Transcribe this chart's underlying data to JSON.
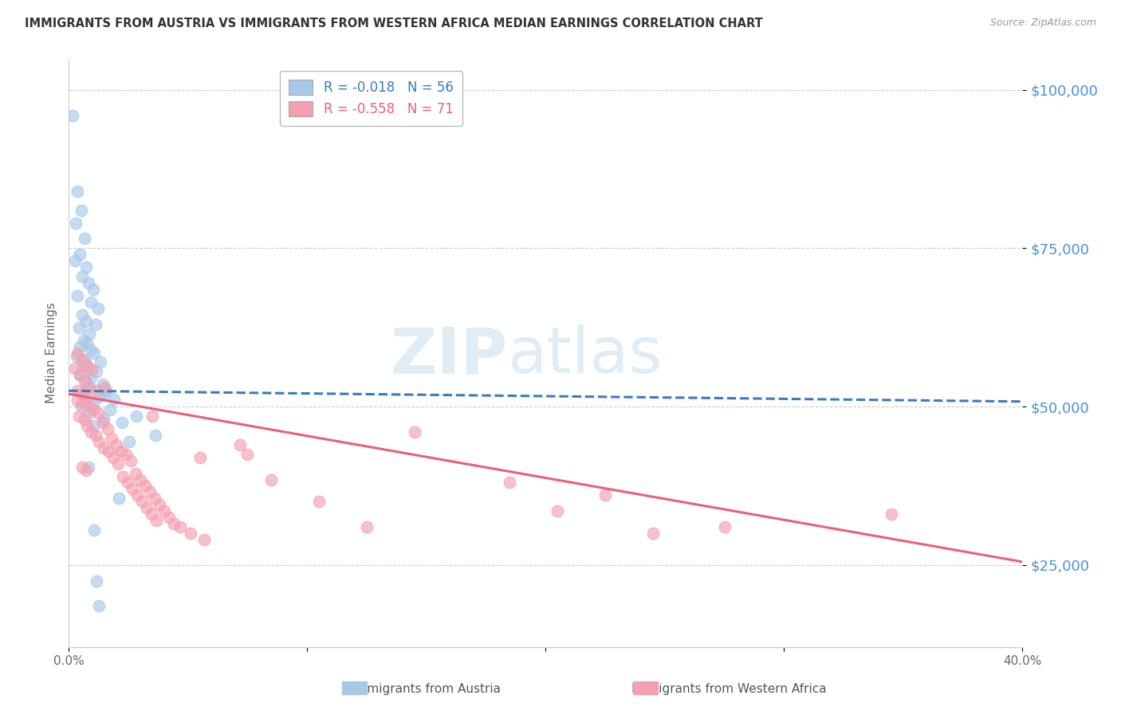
{
  "title": "IMMIGRANTS FROM AUSTRIA VS IMMIGRANTS FROM WESTERN AFRICA MEDIAN EARNINGS CORRELATION CHART",
  "source": "Source: ZipAtlas.com",
  "ylabel": "Median Earnings",
  "watermark_line1": "ZIP",
  "watermark_line2": "atlas",
  "series": [
    {
      "name": "Immigrants from Austria",
      "R": "-0.018",
      "N": 56,
      "color": "#a8c8e8",
      "line_color": "#3a7abf",
      "line_style": "--",
      "trendline_x": [
        0.0,
        40.0
      ],
      "trendline_y": [
        52500,
        50800
      ],
      "points": [
        [
          0.18,
          96000
        ],
        [
          0.38,
          84000
        ],
        [
          0.52,
          81000
        ],
        [
          0.31,
          79000
        ],
        [
          0.65,
          76500
        ],
        [
          0.45,
          74000
        ],
        [
          0.28,
          73000
        ],
        [
          0.72,
          72000
        ],
        [
          0.58,
          70500
        ],
        [
          0.85,
          69500
        ],
        [
          1.05,
          68500
        ],
        [
          0.35,
          67500
        ],
        [
          0.95,
          66500
        ],
        [
          1.25,
          65500
        ],
        [
          0.55,
          64500
        ],
        [
          0.75,
          63500
        ],
        [
          1.15,
          63000
        ],
        [
          0.42,
          62500
        ],
        [
          0.88,
          61500
        ],
        [
          0.62,
          60500
        ],
        [
          0.78,
          60000
        ],
        [
          0.48,
          59500
        ],
        [
          0.92,
          59000
        ],
        [
          1.08,
          58500
        ],
        [
          0.32,
          58000
        ],
        [
          0.68,
          57500
        ],
        [
          1.35,
          57000
        ],
        [
          0.55,
          56500
        ],
        [
          0.82,
          56000
        ],
        [
          1.18,
          55500
        ],
        [
          0.45,
          55000
        ],
        [
          0.95,
          54500
        ],
        [
          0.72,
          54000
        ],
        [
          1.42,
          53500
        ],
        [
          0.88,
          53000
        ],
        [
          1.58,
          52500
        ],
        [
          0.62,
          52000
        ],
        [
          1.28,
          51500
        ],
        [
          0.75,
          51000
        ],
        [
          1.05,
          50500
        ],
        [
          0.52,
          50000
        ],
        [
          1.72,
          49500
        ],
        [
          0.88,
          49000
        ],
        [
          2.85,
          48500
        ],
        [
          1.48,
          48000
        ],
        [
          2.25,
          47500
        ],
        [
          1.05,
          47000
        ],
        [
          3.65,
          45500
        ],
        [
          2.55,
          44500
        ],
        [
          0.85,
          40500
        ],
        [
          2.12,
          35500
        ],
        [
          1.08,
          30500
        ],
        [
          1.18,
          22500
        ],
        [
          1.28,
          18500
        ],
        [
          1.55,
          52200
        ],
        [
          1.92,
          51200
        ]
      ]
    },
    {
      "name": "Immigrants from Western Africa",
      "R": "-0.558",
      "N": 71,
      "color": "#f4a0b0",
      "line_color": "#e8607a",
      "line_style": "-",
      "trendline_x": [
        0.0,
        40.0
      ],
      "trendline_y": [
        52000,
        25500
      ],
      "points": [
        [
          0.28,
          56000
        ],
        [
          0.48,
          55000
        ],
        [
          0.65,
          54000
        ],
        [
          0.82,
          53000
        ],
        [
          0.35,
          52500
        ],
        [
          0.55,
          52000
        ],
        [
          0.72,
          51500
        ],
        [
          0.38,
          51000
        ],
        [
          0.58,
          50500
        ],
        [
          0.88,
          50000
        ],
        [
          1.05,
          49500
        ],
        [
          1.22,
          49000
        ],
        [
          0.42,
          48500
        ],
        [
          0.68,
          48000
        ],
        [
          1.42,
          47500
        ],
        [
          0.78,
          47000
        ],
        [
          1.62,
          46500
        ],
        [
          0.95,
          46000
        ],
        [
          1.12,
          45500
        ],
        [
          1.82,
          45000
        ],
        [
          1.28,
          44500
        ],
        [
          2.02,
          44000
        ],
        [
          1.48,
          43500
        ],
        [
          2.22,
          43000
        ],
        [
          1.68,
          43000
        ],
        [
          2.42,
          42500
        ],
        [
          1.88,
          42000
        ],
        [
          2.62,
          41500
        ],
        [
          2.08,
          41000
        ],
        [
          0.55,
          40500
        ],
        [
          0.72,
          40000
        ],
        [
          2.82,
          39500
        ],
        [
          2.28,
          39000
        ],
        [
          3.02,
          38500
        ],
        [
          2.48,
          38000
        ],
        [
          3.22,
          37500
        ],
        [
          2.68,
          37000
        ],
        [
          3.42,
          36500
        ],
        [
          2.88,
          36000
        ],
        [
          3.62,
          35500
        ],
        [
          3.08,
          35000
        ],
        [
          3.82,
          34500
        ],
        [
          3.28,
          34000
        ],
        [
          4.02,
          33500
        ],
        [
          3.48,
          33000
        ],
        [
          4.22,
          32500
        ],
        [
          3.68,
          32000
        ],
        [
          4.42,
          31500
        ],
        [
          4.68,
          31000
        ],
        [
          5.12,
          30000
        ],
        [
          5.68,
          29000
        ],
        [
          0.38,
          58500
        ],
        [
          0.58,
          57500
        ],
        [
          0.78,
          56500
        ],
        [
          0.98,
          55800
        ],
        [
          1.18,
          52500
        ],
        [
          14.5,
          46000
        ],
        [
          22.5,
          36000
        ],
        [
          27.5,
          31000
        ],
        [
          34.5,
          33000
        ],
        [
          7.2,
          44000
        ],
        [
          8.5,
          38500
        ],
        [
          10.5,
          35000
        ],
        [
          12.5,
          31000
        ],
        [
          18.5,
          38000
        ],
        [
          20.5,
          33500
        ],
        [
          24.5,
          30000
        ],
        [
          7.5,
          42500
        ],
        [
          5.5,
          42000
        ],
        [
          3.5,
          48500
        ],
        [
          1.5,
          53000
        ]
      ]
    }
  ],
  "xlim": [
    0,
    40
  ],
  "ylim": [
    12000,
    105000
  ],
  "yticks": [
    25000,
    50000,
    75000,
    100000
  ],
  "ytick_labels": [
    "$25,000",
    "$50,000",
    "$75,000",
    "$100,000"
  ],
  "xticks": [
    0,
    10,
    20,
    30,
    40
  ],
  "xtick_labels": [
    "0.0%",
    "",
    "",
    "",
    "40.0%"
  ],
  "background_color": "#ffffff",
  "grid_color": "#cccccc",
  "title_color": "#333333",
  "axis_label_color": "#4a90d9",
  "legend_border_color": "#bbbbbb"
}
